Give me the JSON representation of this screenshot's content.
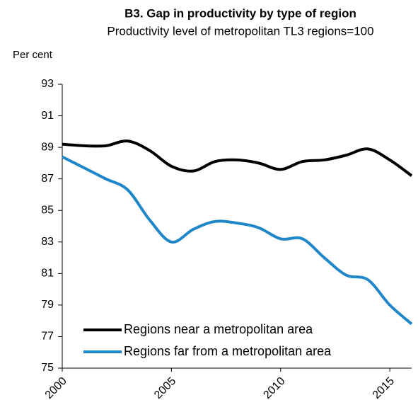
{
  "chart_data": {
    "type": "line",
    "title": "B3. Gap in productivity by type of region",
    "subtitle": "Productivity level of  metropolitan TL3 regions=100",
    "y_label": "Per cent",
    "x": [
      2000,
      2001,
      2002,
      2003,
      2004,
      2005,
      2006,
      2007,
      2008,
      2009,
      2010,
      2011,
      2012,
      2013,
      2014,
      2015,
      2016
    ],
    "series": [
      {
        "name": "Regions near a metropolitan area",
        "color": "#000000",
        "values": [
          89.2,
          89.1,
          89.1,
          89.4,
          88.8,
          87.8,
          87.5,
          88.1,
          88.2,
          88.0,
          87.6,
          88.1,
          88.2,
          88.5,
          88.9,
          88.2,
          87.2
        ]
      },
      {
        "name": "Regions far from a metropolitan area",
        "color": "#1f87c8",
        "values": [
          88.4,
          87.7,
          87.0,
          86.3,
          84.4,
          83.0,
          83.8,
          84.3,
          84.2,
          83.9,
          83.2,
          83.2,
          82.0,
          80.9,
          80.6,
          79.0,
          77.8
        ]
      }
    ],
    "xlim": [
      2000,
      2016
    ],
    "xticks": [
      2000,
      2005,
      2010,
      2015
    ],
    "ylim": [
      75,
      93
    ],
    "yticks": [
      75,
      77,
      79,
      81,
      83,
      85,
      87,
      89,
      91,
      93
    ],
    "grid": false,
    "legend": "lower left"
  }
}
